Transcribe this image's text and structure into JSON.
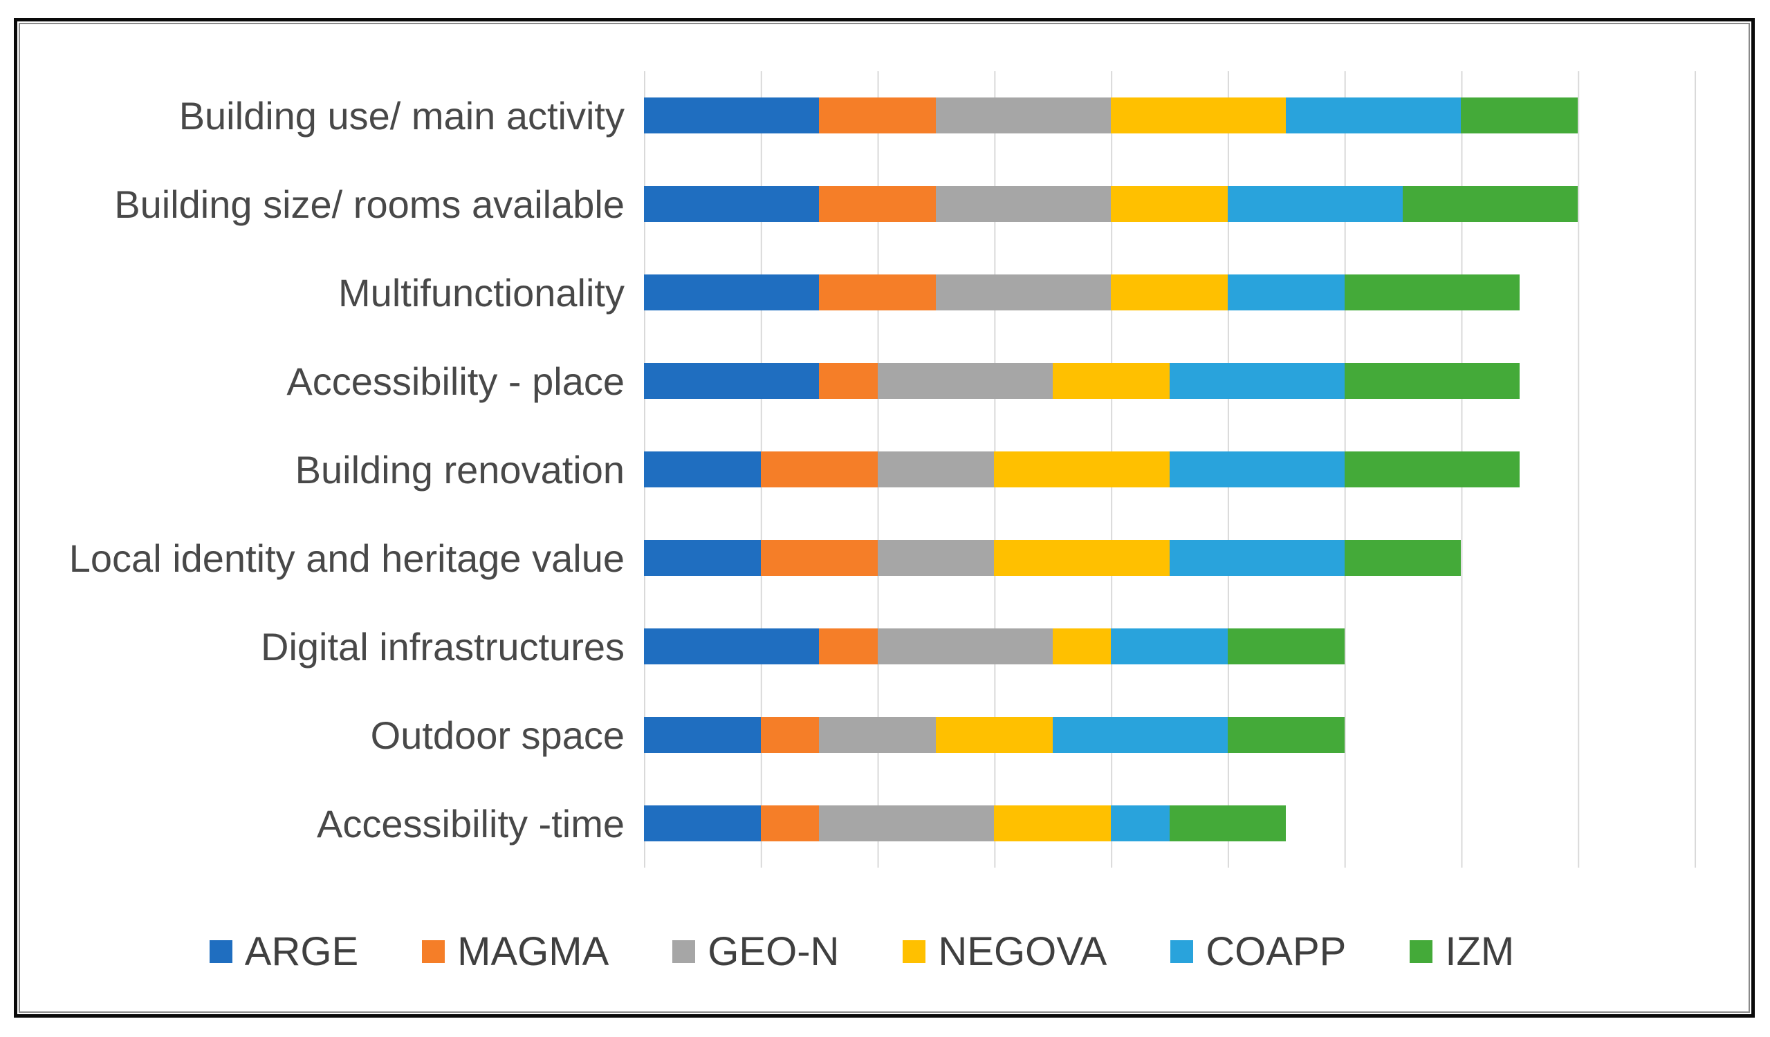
{
  "figure": {
    "kind": "horizontal stacked bar chart figure with black frame",
    "background_color": "#ffffff",
    "frame_border_color": "#0a0a0a",
    "gridline_color": "#d9d9d9",
    "label_text_color": "#484848",
    "legend_text_color": "#3f3f3f"
  },
  "chart_data": {
    "type": "bar",
    "orientation": "horizontal",
    "stacked": true,
    "title": "",
    "xlabel": "",
    "ylabel": "",
    "axis_tick_labels_visible": false,
    "xlim": [
      0,
      9.1
    ],
    "gridline_interval": 1,
    "grid": "vertical-only",
    "legend_position": "bottom",
    "categories": [
      "Building use/ main activity",
      "Building size/ rooms available",
      "Multifunctionality",
      "Accessibility - place",
      "Building renovation",
      "Local identity and heritage value",
      "Digital infrastructures",
      "Outdoor space",
      "Accessibility -time"
    ],
    "series": [
      {
        "name": "ARGE",
        "color": "#1f6ec0",
        "values": [
          1.5,
          1.5,
          1.5,
          1.5,
          1.0,
          1.0,
          1.5,
          1.0,
          1.0
        ]
      },
      {
        "name": "MAGMA",
        "color": "#f57e28",
        "values": [
          1.0,
          1.0,
          1.0,
          0.5,
          1.0,
          1.0,
          0.5,
          0.5,
          0.5
        ]
      },
      {
        "name": "GEO-N",
        "color": "#a6a6a6",
        "values": [
          1.5,
          1.5,
          1.5,
          1.5,
          1.0,
          1.0,
          1.5,
          1.0,
          1.5
        ]
      },
      {
        "name": "NEGOVA",
        "color": "#ffc000",
        "values": [
          1.5,
          1.0,
          1.0,
          1.0,
          1.5,
          1.5,
          0.5,
          1.0,
          1.0
        ]
      },
      {
        "name": "COAPP",
        "color": "#29a3dc",
        "values": [
          1.5,
          1.5,
          1.0,
          1.5,
          1.5,
          1.5,
          1.0,
          1.5,
          0.5
        ]
      },
      {
        "name": "IZM",
        "color": "#44aa39",
        "values": [
          1.0,
          1.5,
          1.5,
          1.5,
          1.5,
          1.0,
          1.0,
          1.0,
          1.0
        ]
      }
    ],
    "category_totals": [
      8.0,
      8.0,
      7.5,
      7.5,
      7.5,
      7.0,
      6.0,
      6.0,
      5.5
    ]
  },
  "legend": {
    "items": [
      {
        "label": "ARGE",
        "color": "#1f6ec0"
      },
      {
        "label": "MAGMA",
        "color": "#f57e28"
      },
      {
        "label": "GEO-N",
        "color": "#a6a6a6"
      },
      {
        "label": "NEGOVA",
        "color": "#ffc000"
      },
      {
        "label": "COAPP",
        "color": "#29a3dc"
      },
      {
        "label": "IZM",
        "color": "#44aa39"
      }
    ]
  }
}
